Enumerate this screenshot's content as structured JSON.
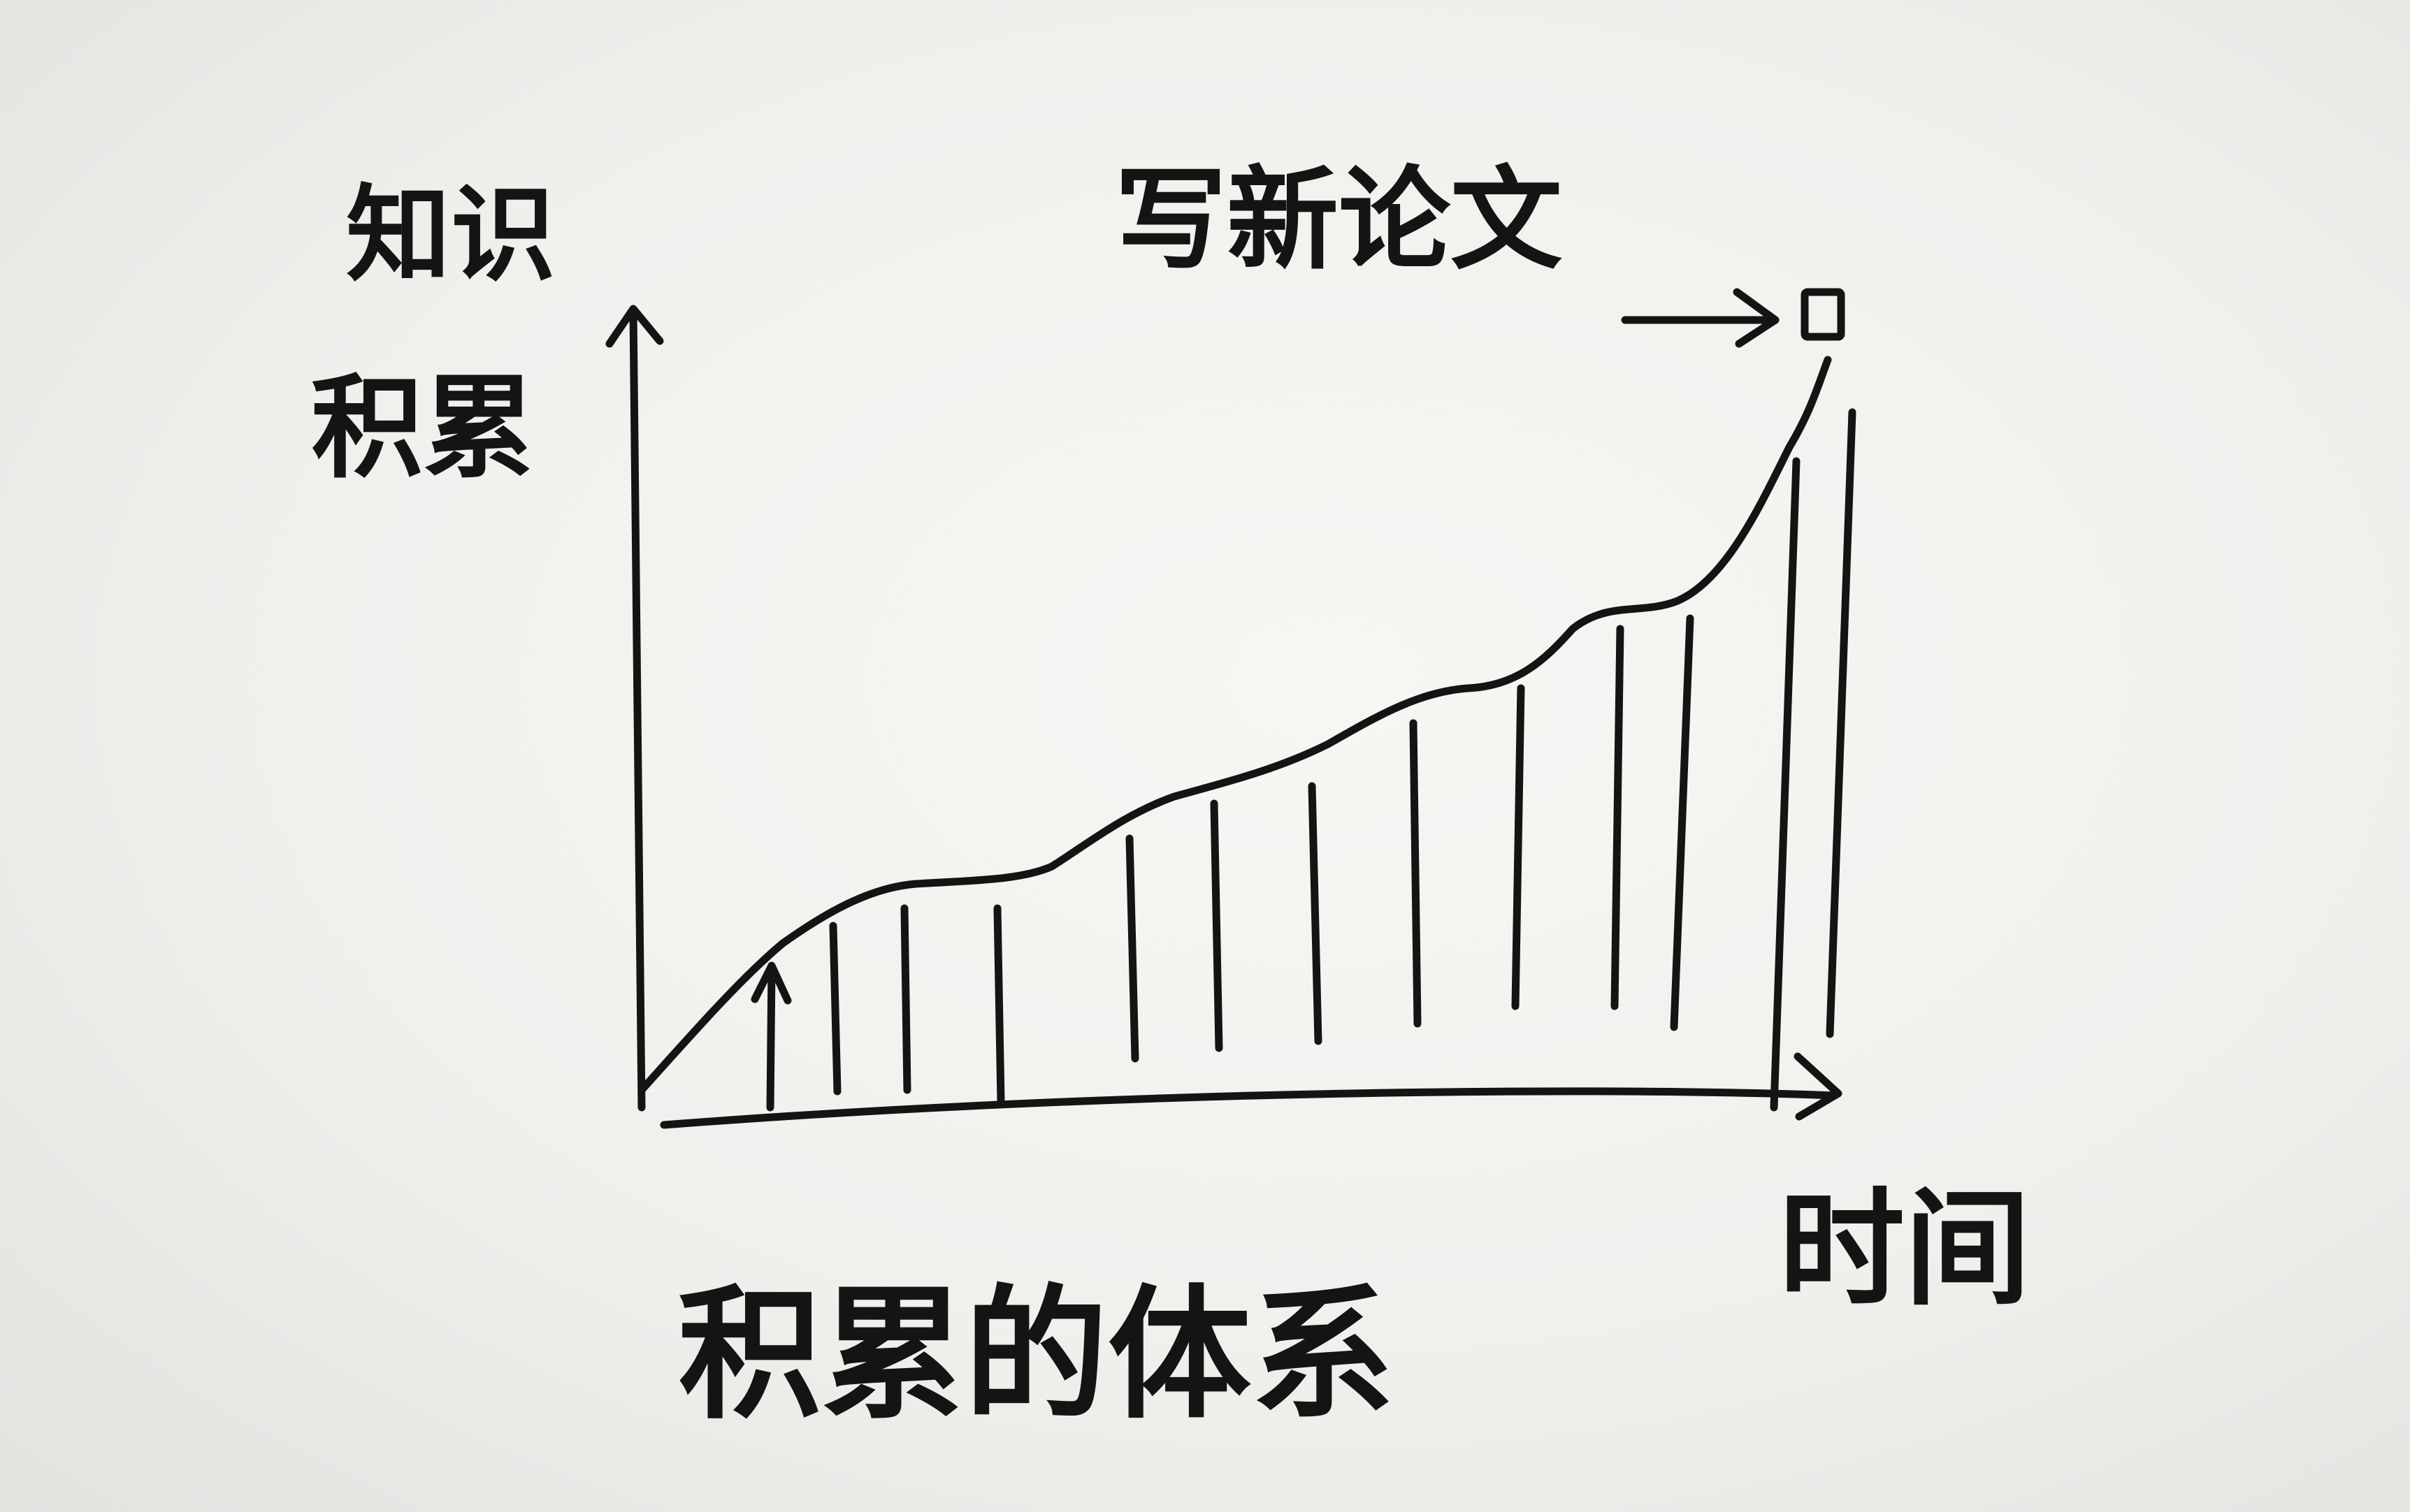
{
  "diagram": {
    "y_axis_label_line1": "知识",
    "y_axis_label_line2": "积累",
    "x_axis_label": "时间",
    "peak_annotation": "写新论文",
    "caption": "积累的体系"
  }
}
